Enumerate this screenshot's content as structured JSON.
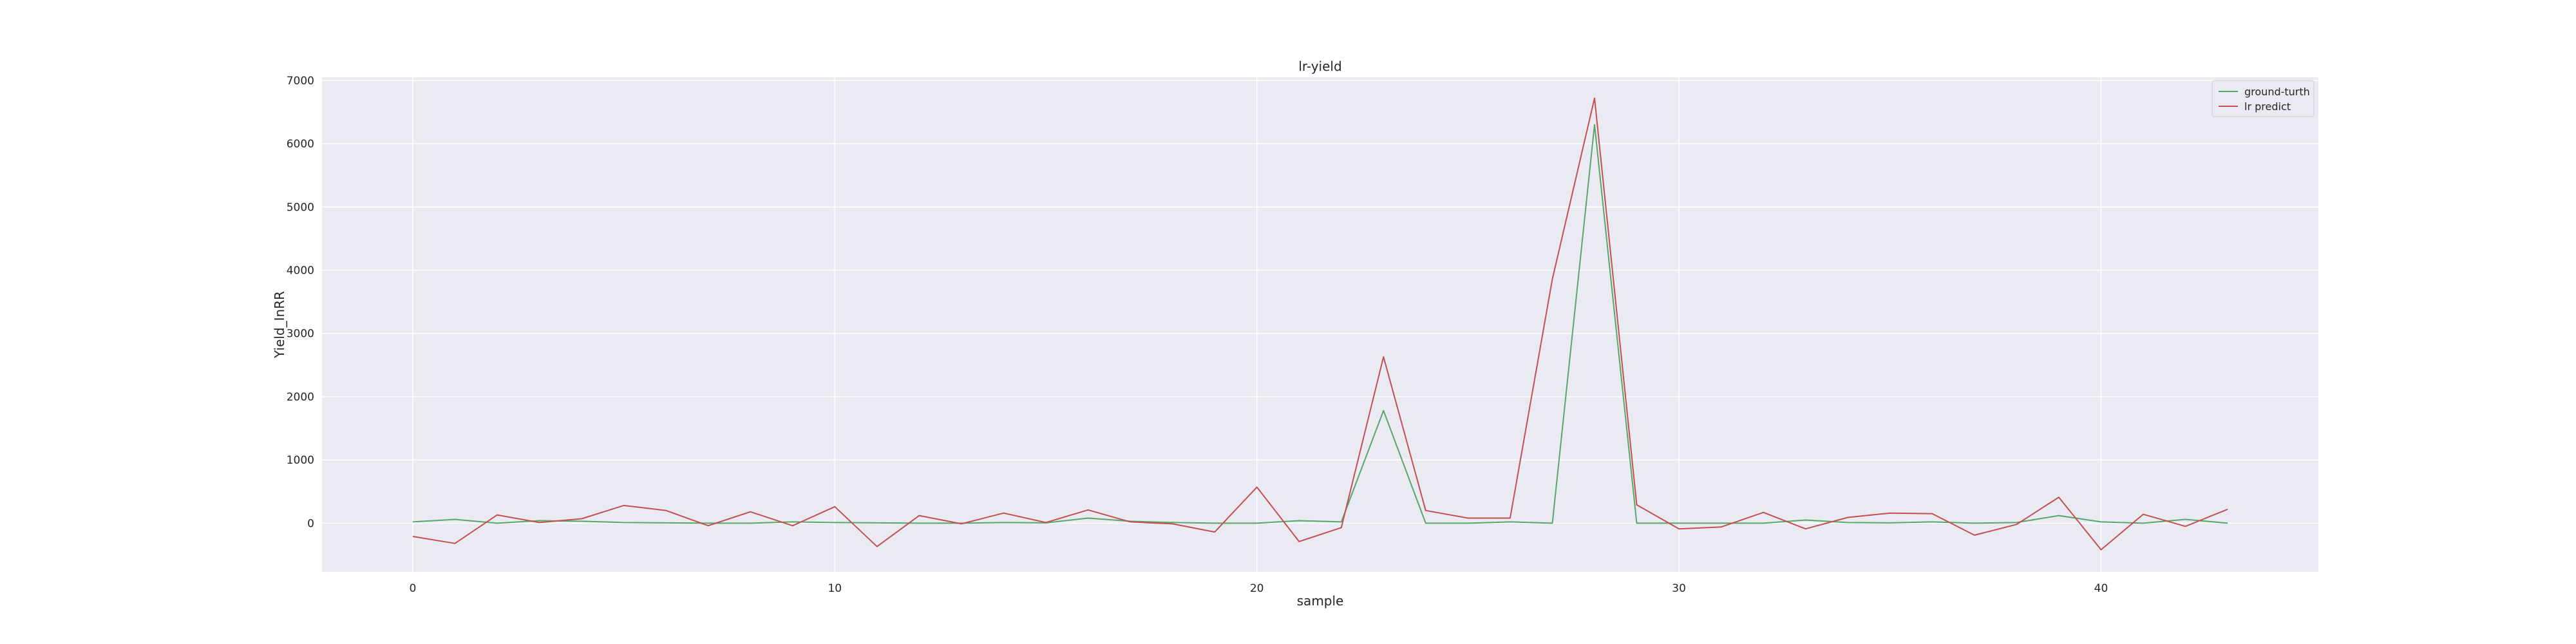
{
  "chart_data": {
    "type": "line",
    "title": "lr-yield",
    "xlabel": "sample",
    "ylabel": "Yield_InRR",
    "xlim": [
      -2.15,
      45.15
    ],
    "ylim": [
      -770,
      7050
    ],
    "xticks": [
      0,
      10,
      20,
      30,
      40
    ],
    "yticks": [
      0,
      1000,
      2000,
      3000,
      4000,
      5000,
      6000,
      7000
    ],
    "grid": true,
    "legend_position": "top-right",
    "colors": {
      "background": "#eaeaf2",
      "grid": "#ffffff",
      "ground_truth": "#55a868",
      "lr_predict": "#c44e52"
    },
    "x": [
      0,
      1,
      2,
      3,
      4,
      5,
      6,
      7,
      8,
      9,
      10,
      11,
      12,
      13,
      14,
      15,
      16,
      17,
      18,
      19,
      20,
      21,
      22,
      23,
      24,
      25,
      26,
      27,
      28,
      29,
      30,
      31,
      32,
      33,
      34,
      35,
      36,
      37,
      38,
      39,
      40,
      41,
      42,
      43
    ],
    "series": [
      {
        "name": "ground-turth",
        "color": "#55a868",
        "values": [
          20,
          60,
          0,
          40,
          30,
          10,
          5,
          0,
          0,
          20,
          10,
          5,
          0,
          0,
          10,
          5,
          80,
          30,
          10,
          0,
          0,
          40,
          20,
          1780,
          0,
          0,
          20,
          0,
          6300,
          0,
          0,
          0,
          0,
          50,
          10,
          5,
          20,
          0,
          10,
          120,
          20,
          0,
          60,
          0
        ]
      },
      {
        "name": "lr predict",
        "color": "#c44e52",
        "values": [
          -210,
          -320,
          130,
          10,
          70,
          280,
          200,
          -40,
          180,
          -40,
          260,
          -370,
          120,
          -10,
          160,
          10,
          210,
          20,
          -10,
          -140,
          570,
          -290,
          -70,
          2630,
          200,
          80,
          80,
          3860,
          6720,
          290,
          -90,
          -60,
          170,
          -90,
          90,
          160,
          150,
          -190,
          -20,
          410,
          -420,
          140,
          -50,
          220
        ]
      }
    ]
  }
}
